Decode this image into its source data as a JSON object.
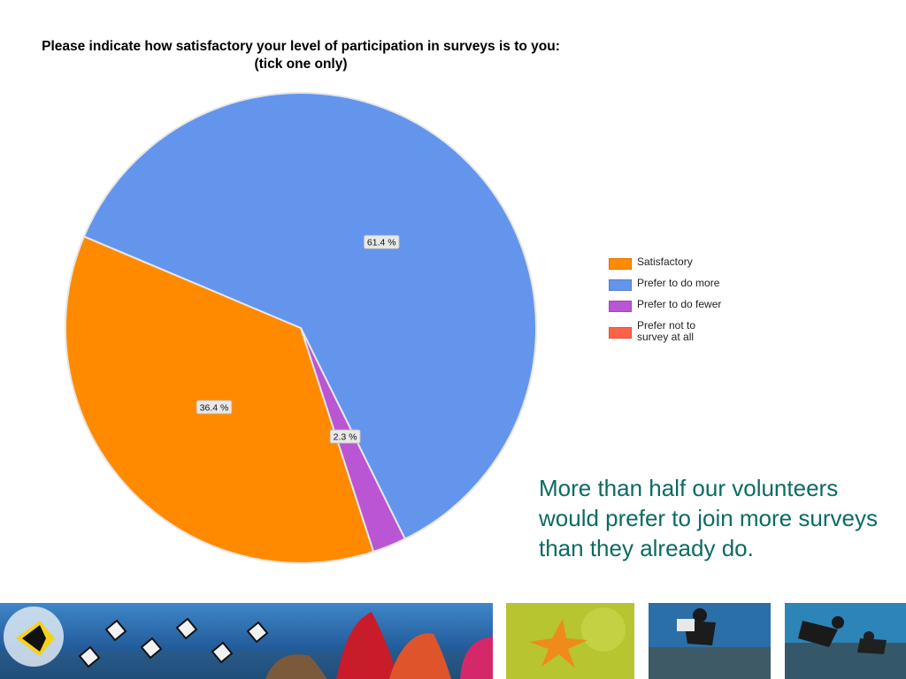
{
  "chart_data": {
    "type": "pie",
    "title": "Please indicate how satisfactory your level of participation in surveys is to you: (tick one only)",
    "series": [
      {
        "name": "Satisfactory",
        "value": 36.4,
        "label": "36.4 %",
        "color": "#FF8A00"
      },
      {
        "name": "Prefer to do more",
        "value": 61.4,
        "label": "61.4 %",
        "color": "#6495ED"
      },
      {
        "name": "Prefer to do fewer",
        "value": 2.3,
        "label": "2.3 %",
        "color": "#BA55D3"
      },
      {
        "name": "Prefer not to survey at all",
        "value": 0,
        "label": "",
        "color": "#FF6347"
      }
    ],
    "legend_position": "right"
  },
  "caption": "More than half our volunteers would prefer to join more surveys than they already do.",
  "banner": {
    "images": [
      "reef-fish-panorama",
      "starfish-photo",
      "diver-survey-photo",
      "divers-reef-photo"
    ]
  }
}
